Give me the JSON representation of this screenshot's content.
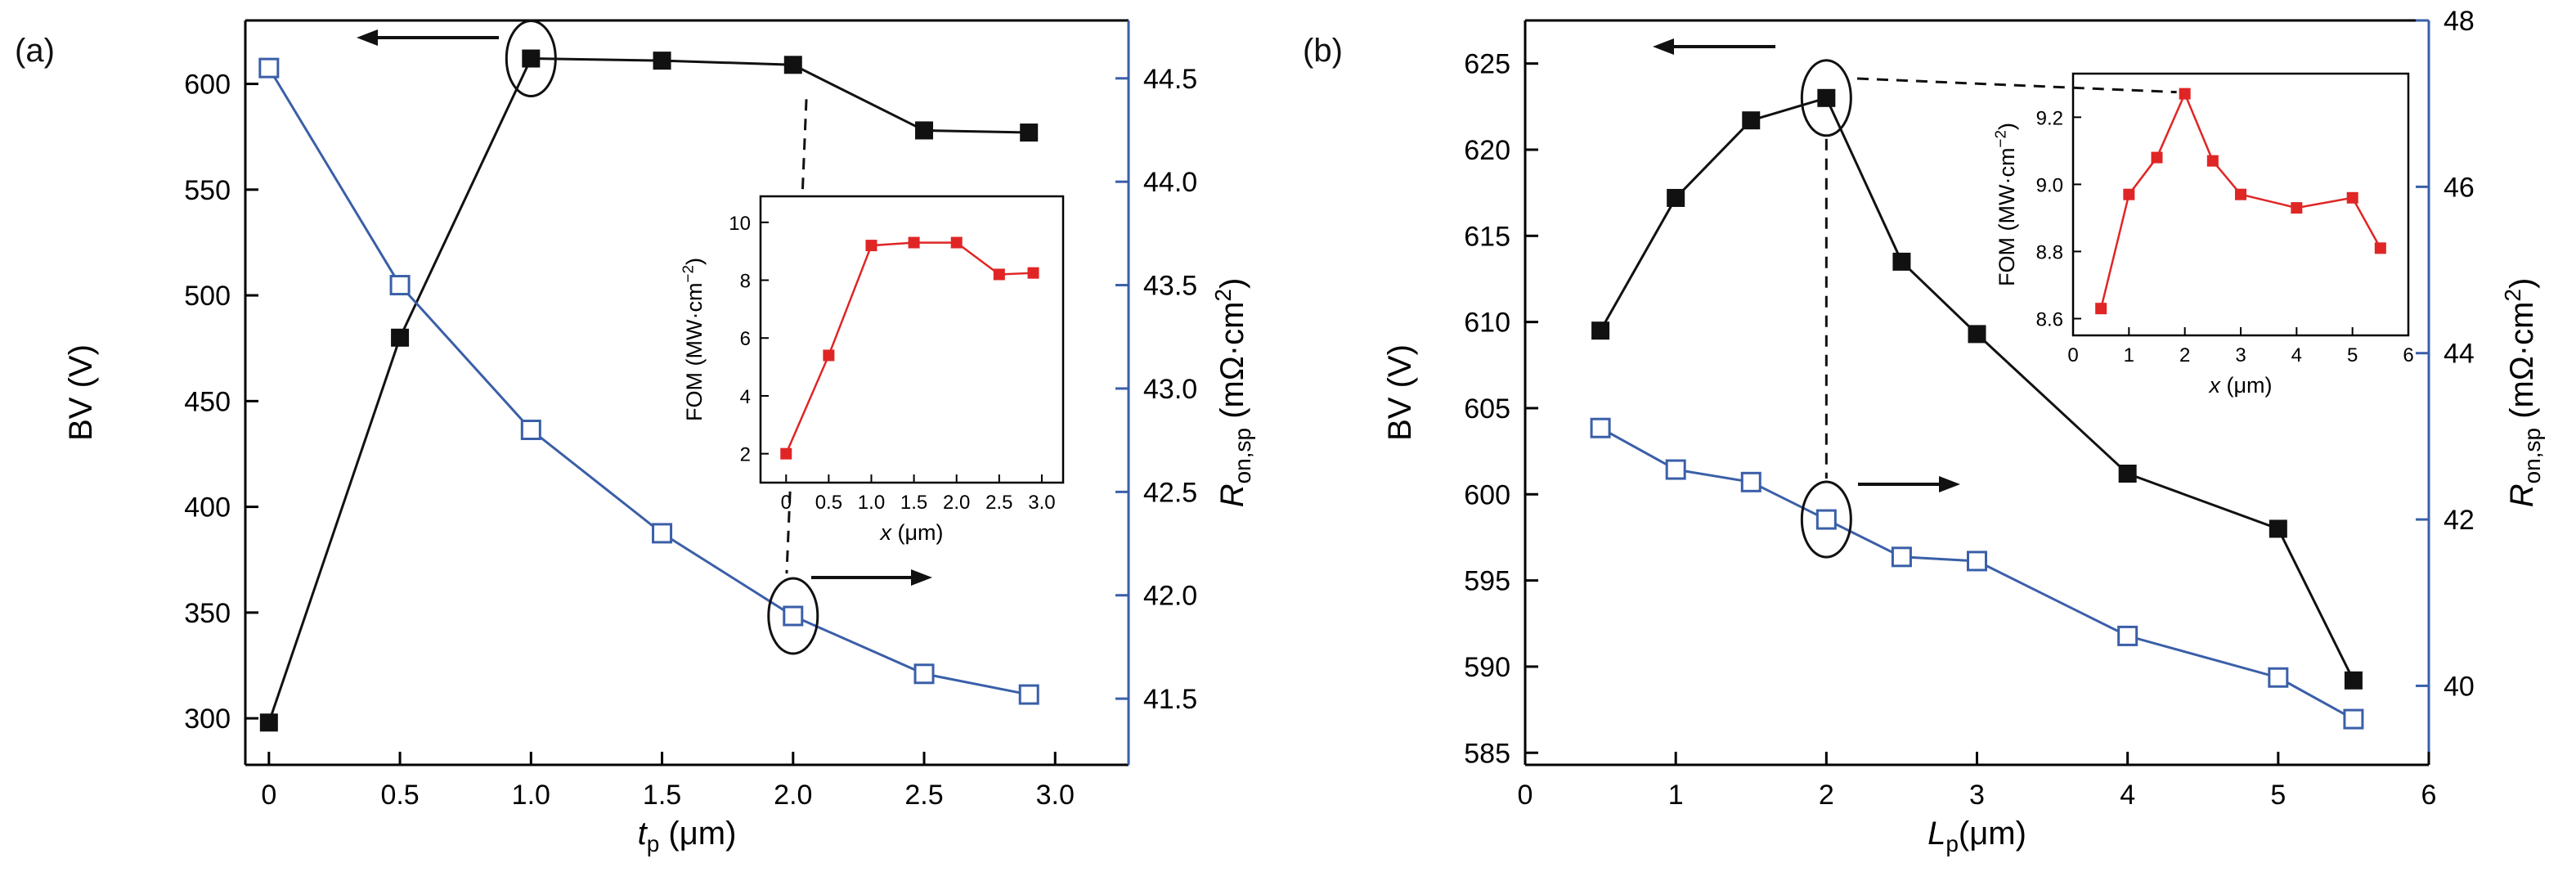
{
  "page": {
    "background": "#ffffff"
  },
  "colors": {
    "bv_series": "#111111",
    "ron_series": "#3a5fa8",
    "fom_series": "#e02525",
    "axis": "#000000"
  },
  "chart_data": [
    {
      "type": "line",
      "panel_label": "(a)",
      "xlabel": [
        {
          "t": "t",
          "i": true
        },
        {
          "t": "p",
          "sub": true
        },
        {
          "t": " (μm)"
        }
      ],
      "ylabel_left": [
        {
          "t": "BV (V)"
        }
      ],
      "ylabel_right": [
        {
          "t": "R",
          "i": true
        },
        {
          "t": "on,sp",
          "sub": true
        },
        {
          "t": " (mΩ·cm"
        },
        {
          "t": "2",
          "sup": true
        },
        {
          "t": ")"
        }
      ],
      "xlim": [
        -0.09,
        3.28
      ],
      "xticks": {
        "values": [
          0,
          0.5,
          1,
          1.5,
          2,
          2.5,
          3
        ],
        "labels": [
          "0",
          "0.5",
          "1.0",
          "1.5",
          "2.0",
          "2.5",
          "3.0"
        ]
      },
      "left": {
        "lim": [
          278,
          630
        ],
        "ticks": [
          300,
          350,
          400,
          450,
          500,
          550,
          600
        ],
        "labels": [
          "300",
          "350",
          "400",
          "450",
          "500",
          "550",
          "600"
        ]
      },
      "right": {
        "lim": [
          41.18,
          44.78
        ],
        "ticks": [
          41.5,
          42,
          42.5,
          43,
          43.5,
          44,
          44.5
        ],
        "labels": [
          "41.5",
          "42.0",
          "42.5",
          "43.0",
          "43.5",
          "44.0",
          "44.5"
        ],
        "color": "#3a5fa8"
      },
      "series": [
        {
          "name": "BV",
          "axis": "left",
          "color": "#111111",
          "marker": "square-filled",
          "x": [
            0,
            0.5,
            1,
            1.5,
            2,
            2.5,
            2.9
          ],
          "y": [
            298,
            480,
            612,
            611,
            609,
            578,
            577
          ]
        },
        {
          "name": "Ron_sp",
          "axis": "right",
          "color": "#3a5fa8",
          "marker": "square-open",
          "x": [
            0,
            0.5,
            1,
            1.5,
            2,
            2.5,
            2.9
          ],
          "y": [
            44.55,
            43.5,
            42.8,
            42.3,
            41.9,
            41.62,
            41.52
          ]
        }
      ],
      "inset": {
        "xlabel": [
          {
            "t": "x",
            "i": true
          },
          {
            "t": " (μm)"
          }
        ],
        "ylabel": [
          {
            "t": "FOM (MW·cm"
          },
          {
            "t": "−2",
            "sup": true
          },
          {
            "t": ")"
          }
        ],
        "xlim": [
          -0.3,
          3.25
        ],
        "xticks": {
          "values": [
            0,
            0.5,
            1,
            1.5,
            2,
            2.5,
            3
          ],
          "labels": [
            "0",
            "0.5",
            "1.0",
            "1.5",
            "2.0",
            "2.5",
            "3.0"
          ]
        },
        "ylim": [
          1,
          10.9
        ],
        "yticks": {
          "values": [
            2,
            4,
            6,
            8,
            10
          ],
          "labels": [
            "2",
            "4",
            "6",
            "8",
            "10"
          ]
        },
        "series": {
          "name": "FOM",
          "color": "#e02525",
          "x": [
            0,
            0.5,
            1,
            1.5,
            2,
            2.5,
            2.9
          ],
          "y": [
            2.0,
            5.4,
            9.2,
            9.3,
            9.3,
            8.2,
            8.25
          ]
        }
      },
      "annotations": [
        {
          "type": "ellipse",
          "axis": "left",
          "x": 1,
          "y": 612,
          "rx": 30,
          "ry": 46
        },
        {
          "type": "arrow",
          "x1": 610,
          "y1": 46,
          "x2": 436,
          "y2": 46
        },
        {
          "type": "ellipse",
          "axis": "right",
          "x": 2,
          "y": 41.9,
          "rx": 30,
          "ry": 46
        },
        {
          "type": "arrow",
          "x1": 992,
          "y1": 706,
          "x2": 1140,
          "y2": 706
        },
        {
          "type": "dash_between",
          "a": {
            "axis": "left",
            "x": 2,
            "y": 609
          },
          "b": {
            "axis": "right",
            "x": 2,
            "y": 41.9
          },
          "trim1": 42,
          "trim2": 52,
          "dx1": 18,
          "dx2": -10
        }
      ]
    },
    {
      "type": "line",
      "panel_label": "(b)",
      "xlabel": [
        {
          "t": "L",
          "i": true
        },
        {
          "t": "p",
          "sub": true
        },
        {
          "t": "(μm)"
        }
      ],
      "ylabel_left": [
        {
          "t": "BV (V)"
        }
      ],
      "ylabel_right": [
        {
          "t": "R",
          "i": true
        },
        {
          "t": "on,sp",
          "sub": true
        },
        {
          "t": " (mΩ·cm"
        },
        {
          "t": "2",
          "sup": true
        },
        {
          "t": ")"
        }
      ],
      "xlim": [
        0,
        6
      ],
      "xticks": {
        "values": [
          0,
          1,
          2,
          3,
          4,
          5,
          6
        ],
        "labels": [
          "0",
          "1",
          "2",
          "3",
          "4",
          "5",
          "6"
        ]
      },
      "left": {
        "lim": [
          584.3,
          627.5
        ],
        "ticks": [
          585,
          590,
          595,
          600,
          605,
          610,
          615,
          620,
          625
        ],
        "labels": [
          "585",
          "590",
          "595",
          "600",
          "605",
          "610",
          "615",
          "620",
          "625"
        ]
      },
      "right": {
        "lim": [
          39.05,
          48
        ],
        "ticks": [
          40,
          42,
          44,
          46,
          48
        ],
        "labels": [
          "40",
          "42",
          "44",
          "46",
          "48"
        ],
        "color": "#3a5fa8"
      },
      "series": [
        {
          "name": "BV",
          "axis": "left",
          "color": "#111111",
          "marker": "square-filled",
          "x": [
            0.5,
            1,
            1.5,
            2,
            2.5,
            3,
            4,
            5,
            5.5
          ],
          "y": [
            609.5,
            617.2,
            621.7,
            623,
            613.5,
            609.3,
            601.2,
            598,
            589.2
          ]
        },
        {
          "name": "Ron_sp",
          "axis": "right",
          "color": "#3a5fa8",
          "marker": "square-open",
          "x": [
            0.5,
            1,
            1.5,
            2,
            2.5,
            3,
            4,
            5,
            5.5
          ],
          "y": [
            43.1,
            42.6,
            42.45,
            42.0,
            41.55,
            41.5,
            40.6,
            40.1,
            39.6
          ]
        }
      ],
      "inset": {
        "xlabel": [
          {
            "t": "x",
            "i": true
          },
          {
            "t": " (μm)"
          }
        ],
        "ylabel": [
          {
            "t": "FOM (MW·cm"
          },
          {
            "t": "−2",
            "sup": true
          },
          {
            "t": ")"
          }
        ],
        "xlim": [
          0,
          6
        ],
        "xticks": {
          "values": [
            0,
            1,
            2,
            3,
            4,
            5,
            6
          ],
          "labels": [
            "0",
            "1",
            "2",
            "3",
            "4",
            "5",
            "6"
          ]
        },
        "ylim": [
          8.55,
          9.33
        ],
        "yticks": {
          "values": [
            8.6,
            8.8,
            9.0,
            9.2
          ],
          "labels": [
            "8.6",
            "8.8",
            "9.0",
            "9.2"
          ]
        },
        "series": {
          "name": "FOM",
          "color": "#e02525",
          "x": [
            0.5,
            1,
            1.5,
            2,
            2.5,
            3,
            4,
            5,
            5.5
          ],
          "y": [
            8.63,
            8.97,
            9.08,
            9.27,
            9.07,
            8.97,
            8.93,
            8.96,
            8.81
          ]
        }
      },
      "annotations": [
        {
          "type": "ellipse",
          "axis": "left",
          "x": 2,
          "y": 623,
          "rx": 30,
          "ry": 46
        },
        {
          "type": "arrow",
          "x1": 596,
          "y1": 57,
          "x2": 446,
          "y2": 57
        },
        {
          "type": "ellipse",
          "axis": "right",
          "x": 2,
          "y": 42.0,
          "rx": 30,
          "ry": 46
        },
        {
          "type": "arrow",
          "x1": 697,
          "y1": 592,
          "x2": 822,
          "y2": 592
        },
        {
          "type": "dash_between",
          "a": {
            "axis": "left",
            "x": 2,
            "y": 623
          },
          "b": {
            "axis": "right",
            "x": 2,
            "y": 42.0
          },
          "trim1": 50,
          "trim2": 50,
          "dx1": 0,
          "dx2": 0
        },
        {
          "type": "dash_to_inset",
          "x1": 696,
          "y1": 96,
          "x": 2,
          "y": 9.27
        }
      ]
    }
  ]
}
